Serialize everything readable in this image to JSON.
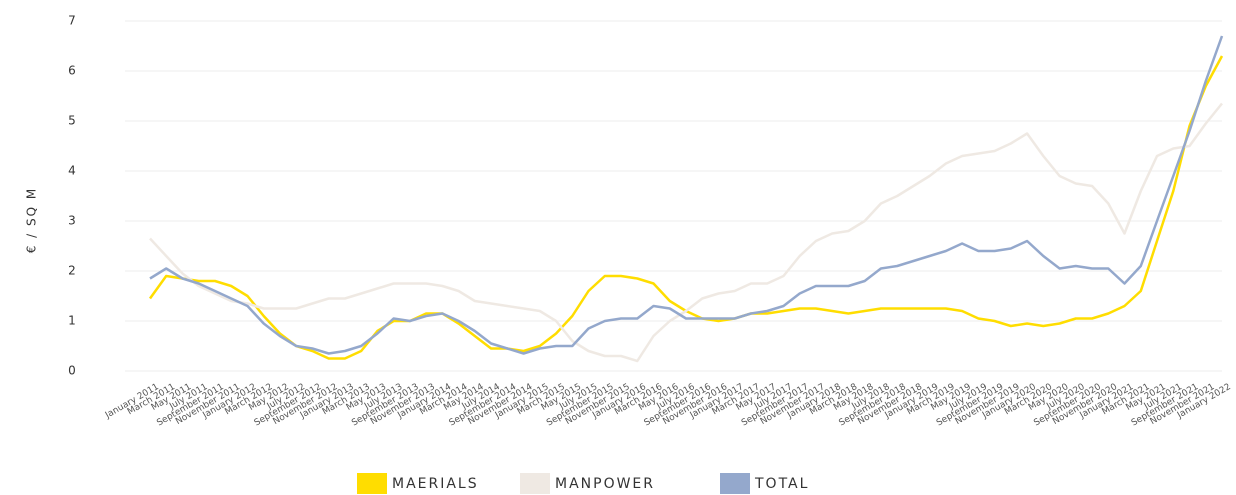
{
  "chart_data": {
    "type": "line",
    "y_label": "€ / SQ M",
    "categories": [
      "January 2011",
      "March 2011",
      "May 2011",
      "July 2011",
      "September 2011",
      "November 2011",
      "January 2012",
      "March 2012",
      "May 2012",
      "July 2012",
      "September 2012",
      "November 2012",
      "January 2013",
      "March 2013",
      "May 2013",
      "July 2013",
      "September 2013",
      "November 2013",
      "January 2014",
      "March 2014",
      "May 2014",
      "July 2014",
      "September 2014",
      "November 2014",
      "January 2015",
      "March 2015",
      "May 2015",
      "July 2015",
      "September 2015",
      "November 2015",
      "January 2016",
      "March 2016",
      "May 2016",
      "July 2016",
      "September 2016",
      "November 2016",
      "January 2017",
      "March 2017",
      "May 2017",
      "July 2017",
      "September 2017",
      "November 2017",
      "January 2018",
      "March 2018",
      "May 2018",
      "July 2018",
      "September 2018",
      "November 2018",
      "January 2019",
      "March 2019",
      "May 2019",
      "July 2019",
      "September 2019",
      "November 2019",
      "January 2020",
      "March 2020",
      "May 2020",
      "July 2020",
      "September 2020",
      "November 2020",
      "January 2021",
      "March 2021",
      "May 2021",
      "July 2021",
      "September 2021",
      "November 2021",
      "January 2022"
    ],
    "series": [
      {
        "name": "MAERIALS",
        "color": "#ffdd00",
        "values": [
          1.45,
          1.9,
          1.85,
          1.8,
          1.8,
          1.7,
          1.5,
          1.1,
          0.75,
          0.5,
          0.4,
          0.25,
          0.25,
          0.4,
          0.8,
          1.0,
          1.0,
          1.15,
          1.15,
          0.95,
          0.7,
          0.45,
          0.45,
          0.4,
          0.5,
          0.75,
          1.1,
          1.6,
          1.9,
          1.9,
          1.85,
          1.75,
          1.4,
          1.2,
          1.05,
          1.0,
          1.05,
          1.15,
          1.15,
          1.2,
          1.25,
          1.25,
          1.2,
          1.15,
          1.2,
          1.25,
          1.25,
          1.25,
          1.25,
          1.25,
          1.2,
          1.05,
          1.0,
          0.9,
          0.95,
          0.9,
          0.95,
          1.05,
          1.05,
          1.15,
          1.3,
          1.6,
          2.6,
          3.6,
          4.9,
          5.7,
          6.3
        ]
      },
      {
        "name": "MANPOWER",
        "color": "#efe9e3",
        "values": [
          2.65,
          2.3,
          1.95,
          1.7,
          1.55,
          1.4,
          1.35,
          1.25,
          1.25,
          1.25,
          1.35,
          1.45,
          1.45,
          1.55,
          1.65,
          1.75,
          1.75,
          1.75,
          1.7,
          1.6,
          1.4,
          1.35,
          1.3,
          1.25,
          1.2,
          1.0,
          0.6,
          0.4,
          0.3,
          0.3,
          0.2,
          0.7,
          1.0,
          1.2,
          1.45,
          1.55,
          1.6,
          1.75,
          1.75,
          1.9,
          2.3,
          2.6,
          2.75,
          2.8,
          3.0,
          3.35,
          3.5,
          3.7,
          3.9,
          4.15,
          4.3,
          4.35,
          4.4,
          4.55,
          4.75,
          4.3,
          3.9,
          3.75,
          3.7,
          3.35,
          2.75,
          3.6,
          4.3,
          4.45,
          4.5,
          4.95,
          5.35
        ]
      },
      {
        "name": "TOTAL",
        "color": "#94a8cc",
        "values": [
          1.85,
          2.05,
          1.85,
          1.75,
          1.6,
          1.45,
          1.3,
          0.95,
          0.7,
          0.5,
          0.45,
          0.35,
          0.4,
          0.5,
          0.75,
          1.05,
          1.0,
          1.1,
          1.15,
          1.0,
          0.8,
          0.55,
          0.45,
          0.35,
          0.45,
          0.5,
          0.5,
          0.85,
          1.0,
          1.05,
          1.05,
          1.3,
          1.25,
          1.05,
          1.05,
          1.05,
          1.05,
          1.15,
          1.2,
          1.3,
          1.55,
          1.7,
          1.7,
          1.7,
          1.8,
          2.05,
          2.1,
          2.2,
          2.3,
          2.4,
          2.55,
          2.4,
          2.4,
          2.45,
          2.6,
          2.3,
          2.05,
          2.1,
          2.05,
          2.05,
          1.75,
          2.1,
          3.0,
          3.9,
          4.8,
          5.8,
          6.7
        ]
      }
    ],
    "ylim": [
      0,
      7
    ],
    "yticks": [
      0,
      1,
      2,
      3,
      4,
      5,
      6,
      7
    ],
    "grid": true
  }
}
